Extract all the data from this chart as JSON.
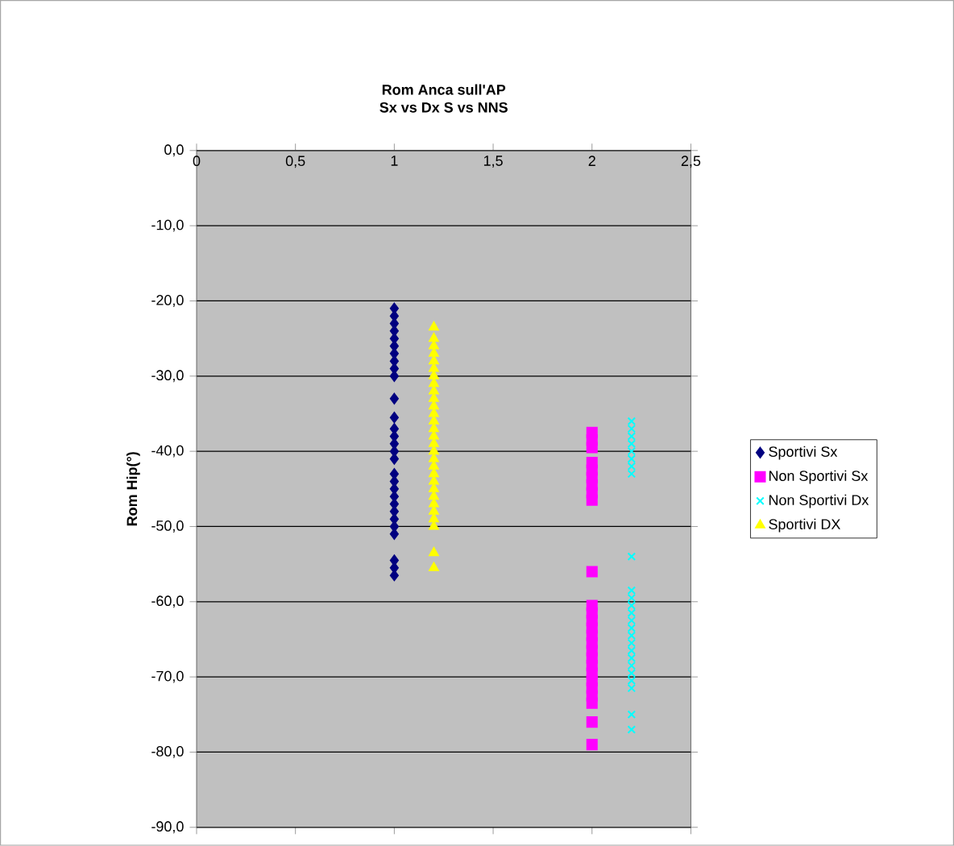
{
  "chart_data": {
    "type": "scatter",
    "title": "Rom Anca sull'AP",
    "subtitle": "Sx vs Dx S vs NNS",
    "ylabel": "Rom Hip(°)",
    "xlim": [
      0,
      2.5
    ],
    "ylim": [
      -90,
      0
    ],
    "xticks": [
      0,
      {
        "value": 0.5,
        "label": "0,5"
      },
      1,
      {
        "value": 1.5,
        "label": "1,5"
      },
      2,
      {
        "value": 2.5,
        "label": "2,5"
      }
    ],
    "yticks": [
      {
        "value": 0,
        "label": "0,0"
      },
      {
        "value": -10,
        "label": "-10,0"
      },
      {
        "value": -20,
        "label": "-20,0"
      },
      {
        "value": -30,
        "label": "-30,0"
      },
      {
        "value": -40,
        "label": "-40,0"
      },
      {
        "value": -50,
        "label": "-50,0"
      },
      {
        "value": -60,
        "label": "-60,0"
      },
      {
        "value": -70,
        "label": "-70,0"
      },
      {
        "value": -80,
        "label": "-80,0"
      },
      {
        "value": -90,
        "label": "-90,0"
      }
    ],
    "grid": "y",
    "legend": "right",
    "series": [
      {
        "name": "Sportivi Sx",
        "color": "#000080",
        "marker": "diamond",
        "x": [
          1,
          1,
          1,
          1,
          1,
          1,
          1,
          1,
          1,
          1,
          1,
          1,
          1,
          1,
          1,
          1,
          1,
          1,
          1,
          1,
          1,
          1,
          1,
          1,
          1,
          1,
          1,
          1,
          1
        ],
        "values": [
          -21,
          -22,
          -23,
          -24,
          -25,
          -26,
          -27,
          -28,
          -29,
          -30,
          -33,
          -35.5,
          -37,
          -38,
          -39,
          -40,
          -41,
          -43,
          -44,
          -45,
          -46,
          -47,
          -48,
          -49,
          -50,
          -51,
          -54.5,
          -55.5,
          -56.5
        ]
      },
      {
        "name": "Non Sportivi Sx",
        "color": "#ff00ff",
        "marker": "square",
        "x": [
          2,
          2,
          2,
          2,
          2,
          2,
          2,
          2,
          2,
          2,
          2,
          2,
          2,
          2,
          2,
          2,
          2,
          2,
          2,
          2,
          2,
          2,
          2,
          2,
          2,
          2
        ],
        "values": [
          -37.5,
          -38.5,
          -39.5,
          -41.5,
          -42.5,
          -43.5,
          -44.5,
          -45.5,
          -46.5,
          -56,
          -60.5,
          -61.5,
          -62.5,
          -63.5,
          -64.5,
          -65.5,
          -66.5,
          -67.5,
          -68.5,
          -69.5,
          -70.5,
          -71.5,
          -72.5,
          -73.5,
          -76,
          -79
        ]
      },
      {
        "name": "Non Sportivi Dx",
        "color": "#00ffff",
        "marker": "cross",
        "x": [
          2.2,
          2.2,
          2.2,
          2.2,
          2.2,
          2.2,
          2.2,
          2.2,
          2.2,
          2.2,
          2.2,
          2.2,
          2.2,
          2.2,
          2.2,
          2.2,
          2.2,
          2.2,
          2.2,
          2.2,
          2.2,
          2.2,
          2.2,
          2.2,
          2.2
        ],
        "values": [
          -36,
          -37,
          -38,
          -39,
          -40,
          -41,
          -42,
          -43,
          -54,
          -58.5,
          -59.5,
          -60.5,
          -61.5,
          -62.5,
          -63.5,
          -64.5,
          -65.5,
          -66.5,
          -67.5,
          -68.5,
          -69.5,
          -70.5,
          -71.5,
          -75,
          -77
        ]
      },
      {
        "name": "Sportivi DX",
        "color": "#ffff00",
        "marker": "triangle",
        "x": [
          1.2,
          1.2,
          1.2,
          1.2,
          1.2,
          1.2,
          1.2,
          1.2,
          1.2,
          1.2,
          1.2,
          1.2,
          1.2,
          1.2,
          1.2,
          1.2,
          1.2,
          1.2,
          1.2,
          1.2,
          1.2,
          1.2,
          1.2,
          1.2,
          1.2,
          1.2,
          1.2,
          1.2,
          1.2
        ],
        "values": [
          -23.5,
          -25,
          -26,
          -27,
          -28,
          -29,
          -30,
          -31,
          -32,
          -33,
          -34,
          -35,
          -36,
          -37,
          -38,
          -39,
          -40,
          -41,
          -42,
          -43,
          -44,
          -45,
          -46,
          -47,
          -48,
          -49,
          -50,
          -53.5,
          -55.5
        ]
      }
    ]
  }
}
